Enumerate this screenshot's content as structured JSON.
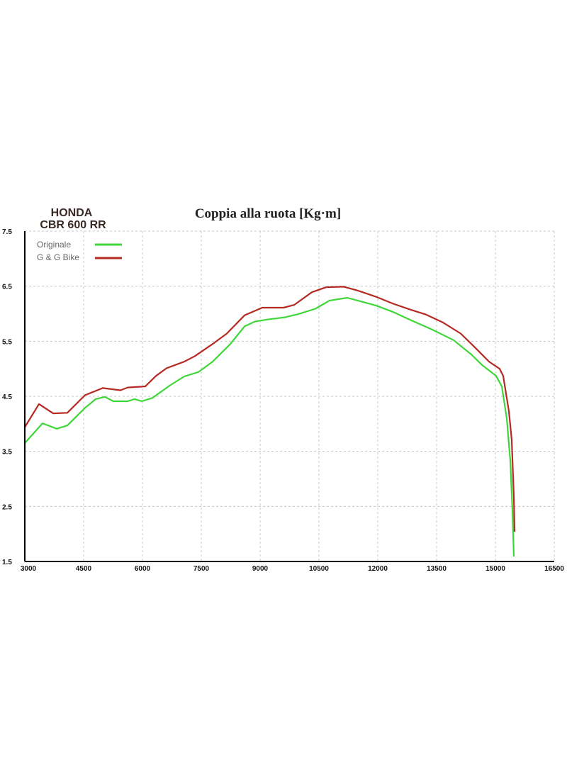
{
  "brand": {
    "line1": "HONDA",
    "line2": "CBR 600 RR"
  },
  "chart_data": {
    "type": "line",
    "title": "Coppia alla ruota  [Kg·m]",
    "xlabel": "",
    "ylabel": "",
    "xlim": [
      3000,
      16500
    ],
    "ylim": [
      1.5,
      7.5
    ],
    "xticks": [
      "3000",
      "4500",
      "6000",
      "7500",
      "9000",
      "10500",
      "12000",
      "13500",
      "15000",
      "16500"
    ],
    "yticks": [
      "7.5",
      "6.5",
      "5.5",
      "4.5",
      "3.5",
      "2.5",
      "1.5"
    ],
    "grid": true,
    "legend_placement": "top-left",
    "series": [
      {
        "name": "Originale",
        "color": "#3fd63a",
        "x": [
          3000,
          3452,
          3813,
          4084,
          4536,
          4807,
          5042,
          5259,
          5620,
          5801,
          5982,
          6253,
          6705,
          7066,
          7428,
          7789,
          8241,
          8602,
          8873,
          9235,
          9596,
          9958,
          10410,
          10771,
          11223,
          11584,
          11946,
          12398,
          12849,
          13392,
          13934,
          14386,
          14657,
          15018,
          15163,
          15289,
          15380,
          15434,
          15470
        ],
        "y": [
          3.65,
          4.01,
          3.91,
          3.97,
          4.29,
          4.45,
          4.49,
          4.41,
          4.41,
          4.45,
          4.41,
          4.47,
          4.7,
          4.86,
          4.94,
          5.13,
          5.45,
          5.77,
          5.86,
          5.9,
          5.93,
          5.99,
          6.09,
          6.24,
          6.29,
          6.22,
          6.15,
          6.03,
          5.88,
          5.71,
          5.52,
          5.26,
          5.07,
          4.87,
          4.68,
          4.1,
          3.33,
          2.43,
          1.59
        ]
      },
      {
        "name": "G & G Bike",
        "color": "#b52a22",
        "x": [
          3000,
          3361,
          3723,
          4084,
          4536,
          4988,
          5440,
          5620,
          6072,
          6343,
          6614,
          7066,
          7337,
          7789,
          8151,
          8602,
          9054,
          9596,
          9867,
          10319,
          10681,
          11133,
          11494,
          11946,
          12398,
          12849,
          13211,
          13663,
          14114,
          14476,
          14837,
          15108,
          15199,
          15343,
          15416,
          15470,
          15488
        ],
        "y": [
          3.94,
          4.36,
          4.19,
          4.2,
          4.52,
          4.65,
          4.61,
          4.66,
          4.68,
          4.87,
          5.01,
          5.13,
          5.23,
          5.45,
          5.64,
          5.97,
          6.11,
          6.11,
          6.16,
          6.39,
          6.48,
          6.49,
          6.42,
          6.31,
          6.18,
          6.07,
          5.99,
          5.84,
          5.64,
          5.39,
          5.13,
          5.0,
          4.87,
          4.23,
          3.71,
          2.68,
          2.04
        ]
      }
    ]
  }
}
